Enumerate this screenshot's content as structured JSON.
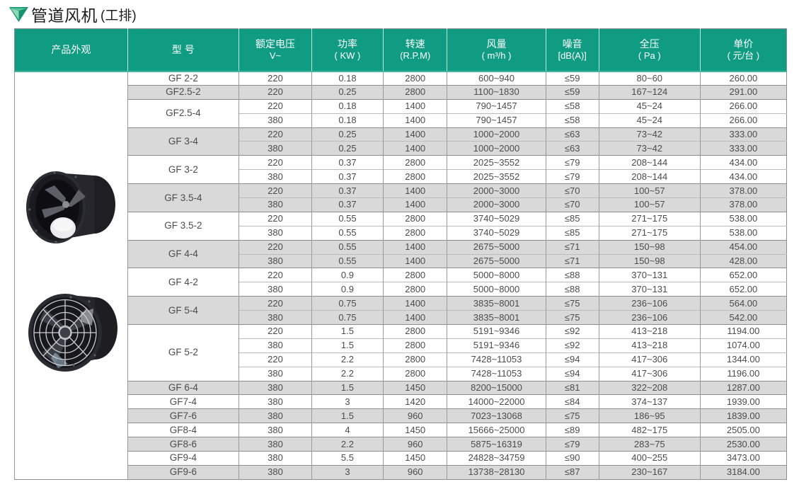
{
  "page": {
    "title": "管道风机",
    "title_suffix": "(工排)"
  },
  "colors": {
    "header_teal": "#0f9c82",
    "header_edge_highlight": "#45b49c",
    "row_gray": "#d9d9d9",
    "row_white": "#ffffff",
    "title_icon_light_green": "#8fd8b8",
    "title_icon_dark_green": "#14936f"
  },
  "images": [
    {
      "name": "duct-fan-photo-side-view"
    },
    {
      "name": "duct-fan-photo-front-grille"
    }
  ],
  "table": {
    "total_rows": 29,
    "columns": [
      {
        "label": "产品外观",
        "sub": ""
      },
      {
        "label": "型 号",
        "sub": ""
      },
      {
        "label": "额定电压",
        "sub": "V~"
      },
      {
        "label": "功率",
        "sub": "( KW )"
      },
      {
        "label": "转速",
        "sub": "(R.P.M)"
      },
      {
        "label": "风量",
        "sub": "( m³/h )"
      },
      {
        "label": "噪音",
        "sub": "[dB(A)]"
      },
      {
        "label": "全压",
        "sub": "( Pa )"
      },
      {
        "label": "单价",
        "sub": "( 元/台 )"
      }
    ],
    "groups": [
      {
        "model": "GF 2-2",
        "shade": "white",
        "rows": [
          {
            "voltage": "220",
            "power": "0.18",
            "speed": "2800",
            "airflow": "600~940",
            "noise": "≤59",
            "pressure": "80~60",
            "price": "260.00"
          }
        ]
      },
      {
        "model": "GF2.5-2",
        "shade": "gray",
        "rows": [
          {
            "voltage": "220",
            "power": "0.25",
            "speed": "2800",
            "airflow": "1100~1830",
            "noise": "≤59",
            "pressure": "167~124",
            "price": "291.00"
          }
        ]
      },
      {
        "model": "GF2.5-4",
        "shade": "white",
        "rows": [
          {
            "voltage": "220",
            "power": "0.18",
            "speed": "1400",
            "airflow": "790~1457",
            "noise": "≤58",
            "pressure": "45~24",
            "price": "266.00"
          },
          {
            "voltage": "380",
            "power": "0.18",
            "speed": "1400",
            "airflow": "790~1457",
            "noise": "≤58",
            "pressure": "45~24",
            "price": "266.00"
          }
        ]
      },
      {
        "model": "GF 3-4",
        "shade": "gray",
        "rows": [
          {
            "voltage": "220",
            "power": "0.25",
            "speed": "1400",
            "airflow": "1000~2000",
            "noise": "≤63",
            "pressure": "73~42",
            "price": "333.00"
          },
          {
            "voltage": "380",
            "power": "0.25",
            "speed": "1400",
            "airflow": "1000~2000",
            "noise": "≤63",
            "pressure": "73~42",
            "price": "333.00"
          }
        ]
      },
      {
        "model": "GF 3-2",
        "shade": "white",
        "rows": [
          {
            "voltage": "220",
            "power": "0.37",
            "speed": "2800",
            "airflow": "2025~3552",
            "noise": "≤79",
            "pressure": "208~144",
            "price": "434.00"
          },
          {
            "voltage": "380",
            "power": "0.37",
            "speed": "2800",
            "airflow": "2025~3552",
            "noise": "≤79",
            "pressure": "208~144",
            "price": "434.00"
          }
        ]
      },
      {
        "model": "GF 3.5-4",
        "shade": "gray",
        "rows": [
          {
            "voltage": "220",
            "power": "0.37",
            "speed": "1400",
            "airflow": "2000~3000",
            "noise": "≤70",
            "pressure": "100~57",
            "price": "378.00"
          },
          {
            "voltage": "380",
            "power": "0.37",
            "speed": "1400",
            "airflow": "2000~3000",
            "noise": "≤70",
            "pressure": "100~57",
            "price": "378.00"
          }
        ]
      },
      {
        "model": "GF 3.5-2",
        "shade": "white",
        "rows": [
          {
            "voltage": "220",
            "power": "0.55",
            "speed": "2800",
            "airflow": "3740~5029",
            "noise": "≤85",
            "pressure": "271~175",
            "price": "538.00"
          },
          {
            "voltage": "380",
            "power": "0.55",
            "speed": "2800",
            "airflow": "3740~5029",
            "noise": "≤85",
            "pressure": "271~175",
            "price": "538.00"
          }
        ]
      },
      {
        "model": "GF 4-4",
        "shade": "gray",
        "rows": [
          {
            "voltage": "220",
            "power": "0.55",
            "speed": "1400",
            "airflow": "2675~5000",
            "noise": "≤71",
            "pressure": "150~98",
            "price": "454.00"
          },
          {
            "voltage": "380",
            "power": "0.55",
            "speed": "1400",
            "airflow": "2675~5000",
            "noise": "≤71",
            "pressure": "150~98",
            "price": "428.00"
          }
        ]
      },
      {
        "model": "GF 4-2",
        "shade": "white",
        "rows": [
          {
            "voltage": "220",
            "power": "0.9",
            "speed": "2800",
            "airflow": "5000~8000",
            "noise": "≤88",
            "pressure": "370~131",
            "price": "652.00"
          },
          {
            "voltage": "380",
            "power": "0.9",
            "speed": "2800",
            "airflow": "5000~8000",
            "noise": "≤88",
            "pressure": "370~131",
            "price": "652.00"
          }
        ]
      },
      {
        "model": "GF 5-4",
        "shade": "gray",
        "rows": [
          {
            "voltage": "220",
            "power": "0.75",
            "speed": "1400",
            "airflow": "3835~8001",
            "noise": "≤75",
            "pressure": "236~106",
            "price": "564.00"
          },
          {
            "voltage": "380",
            "power": "0.75",
            "speed": "1400",
            "airflow": "3835~8001",
            "noise": "≤75",
            "pressure": "236~106",
            "price": "542.00"
          }
        ]
      },
      {
        "model": "GF 5-2",
        "shade": "white",
        "rows": [
          {
            "voltage": "220",
            "power": "1.5",
            "speed": "2800",
            "airflow": "5191~9346",
            "noise": "≤92",
            "pressure": "413~218",
            "price": "1194.00"
          },
          {
            "voltage": "380",
            "power": "1.5",
            "speed": "2800",
            "airflow": "5191~9346",
            "noise": "≤92",
            "pressure": "413~218",
            "price": "1074.00"
          },
          {
            "voltage": "220",
            "power": "2.2",
            "speed": "2800",
            "airflow": "7428~11053",
            "noise": "≤94",
            "pressure": "417~306",
            "price": "1344.00"
          },
          {
            "voltage": "380",
            "power": "2.2",
            "speed": "2800",
            "airflow": "7428~11053",
            "noise": "≤94",
            "pressure": "417~306",
            "price": "1196.00"
          }
        ]
      },
      {
        "model": "GF 6-4",
        "shade": "gray",
        "rows": [
          {
            "voltage": "380",
            "power": "1.5",
            "speed": "1450",
            "airflow": "8200~15000",
            "noise": "≤81",
            "pressure": "322~208",
            "price": "1287.00"
          }
        ]
      },
      {
        "model": "GF7-4",
        "shade": "white",
        "rows": [
          {
            "voltage": "380",
            "power": "3",
            "speed": "1420",
            "airflow": "14000~22000",
            "noise": "≤84",
            "pressure": "374~137",
            "price": "1939.00"
          }
        ]
      },
      {
        "model": "GF7-6",
        "shade": "gray",
        "rows": [
          {
            "voltage": "380",
            "power": "1.5",
            "speed": "960",
            "airflow": "7023~13068",
            "noise": "≤75",
            "pressure": "186~95",
            "price": "1839.00"
          }
        ]
      },
      {
        "model": "GF8-4",
        "shade": "white",
        "rows": [
          {
            "voltage": "380",
            "power": "4",
            "speed": "1450",
            "airflow": "15666~25000",
            "noise": "≤89",
            "pressure": "482~175",
            "price": "2505.00"
          }
        ]
      },
      {
        "model": "GF8-6",
        "shade": "gray",
        "rows": [
          {
            "voltage": "380",
            "power": "2.2",
            "speed": "960",
            "airflow": "5875~16319",
            "noise": "≤79",
            "pressure": "283~75",
            "price": "2530.00"
          }
        ]
      },
      {
        "model": "GF9-4",
        "shade": "white",
        "rows": [
          {
            "voltage": "380",
            "power": "5.5",
            "speed": "1450",
            "airflow": "24828~34759",
            "noise": "≤90",
            "pressure": "400~255",
            "price": "3473.00"
          }
        ]
      },
      {
        "model": "GF9-6",
        "shade": "gray",
        "rows": [
          {
            "voltage": "380",
            "power": "3",
            "speed": "960",
            "airflow": "13738~28130",
            "noise": "≤87",
            "pressure": "230~167",
            "price": "3184.00"
          }
        ]
      }
    ]
  }
}
